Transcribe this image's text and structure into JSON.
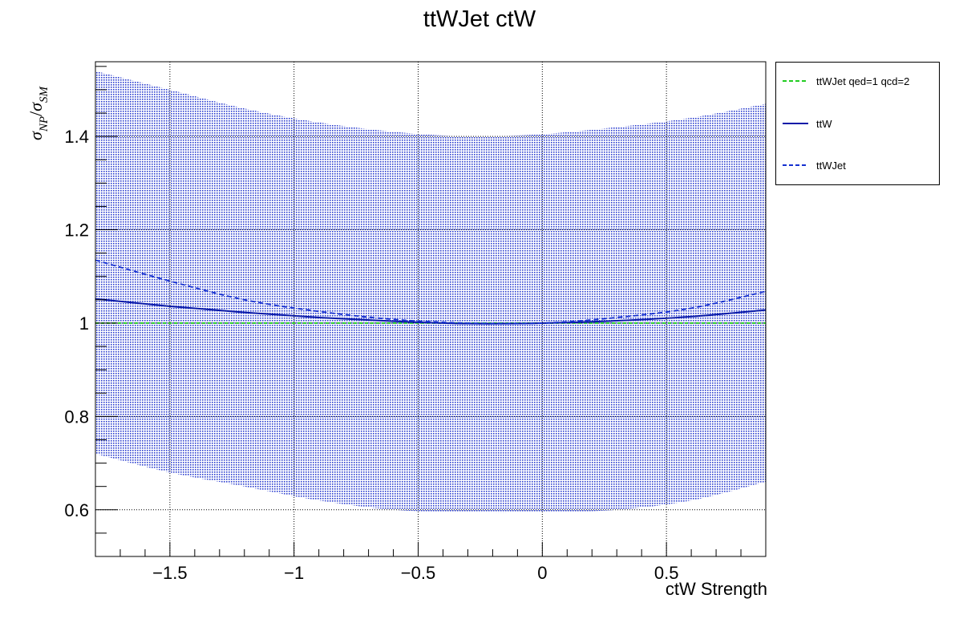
{
  "chart_data": {
    "type": "line",
    "title": "ttWJet ctW",
    "xlabel": "ctW Strength",
    "ylabel_sym": "σ",
    "ylabel_sub_num": "NP",
    "ylabel_slash": "/",
    "ylabel_sub_den": "SM",
    "xlim": [
      -1.8,
      0.9
    ],
    "ylim": [
      0.5,
      1.56
    ],
    "xticks": [
      -1.5,
      -1,
      -0.5,
      0,
      0.5
    ],
    "xtick_labels": [
      "−1.5",
      "−1",
      "−0.5",
      "0",
      "0.5"
    ],
    "yticks": [
      0.6,
      0.8,
      1,
      1.2,
      1.4
    ],
    "ytick_labels": [
      "0.6",
      "0.8",
      "1",
      "1.2",
      "1.4"
    ],
    "grid": true,
    "legend_position": "outside-right-top",
    "band": {
      "color": "#2d3fd0",
      "x": [
        -1.8,
        -1.5,
        -1.2,
        -0.9,
        -0.6,
        -0.3,
        0.0,
        0.3,
        0.6,
        0.9
      ],
      "upper": [
        1.54,
        1.5,
        1.46,
        1.43,
        1.41,
        1.4,
        1.405,
        1.42,
        1.44,
        1.47
      ],
      "lower": [
        0.72,
        0.68,
        0.65,
        0.62,
        0.6,
        0.595,
        0.595,
        0.6,
        0.62,
        0.66
      ]
    },
    "series": [
      {
        "name": "ttWJet qed=1 qcd=2",
        "color": "#22cc22",
        "style": "dashed",
        "x": [
          -1.8,
          -1.5,
          -1.2,
          -0.9,
          -0.6,
          -0.3,
          0.0,
          0.3,
          0.6,
          0.9
        ],
        "y": [
          1.0,
          1.0,
          1.0,
          1.0,
          1.0,
          1.0,
          1.0,
          1.0,
          1.0,
          1.0
        ]
      },
      {
        "name": "ttW",
        "color": "#0a1aa8",
        "style": "solid",
        "x": [
          -1.8,
          -1.5,
          -1.2,
          -0.9,
          -0.6,
          -0.3,
          0.0,
          0.3,
          0.6,
          0.9
        ],
        "y": [
          1.052,
          1.036,
          1.023,
          1.012,
          1.004,
          0.999,
          1.0,
          1.005,
          1.014,
          1.028
        ]
      },
      {
        "name": "ttWJet",
        "color": "#1530d0",
        "style": "dashed",
        "x": [
          -1.8,
          -1.5,
          -1.2,
          -0.9,
          -0.6,
          -0.3,
          0.0,
          0.3,
          0.6,
          0.9
        ],
        "y": [
          1.135,
          1.09,
          1.05,
          1.025,
          1.008,
          1.0,
          1.0,
          1.012,
          1.032,
          1.068
        ]
      }
    ]
  }
}
